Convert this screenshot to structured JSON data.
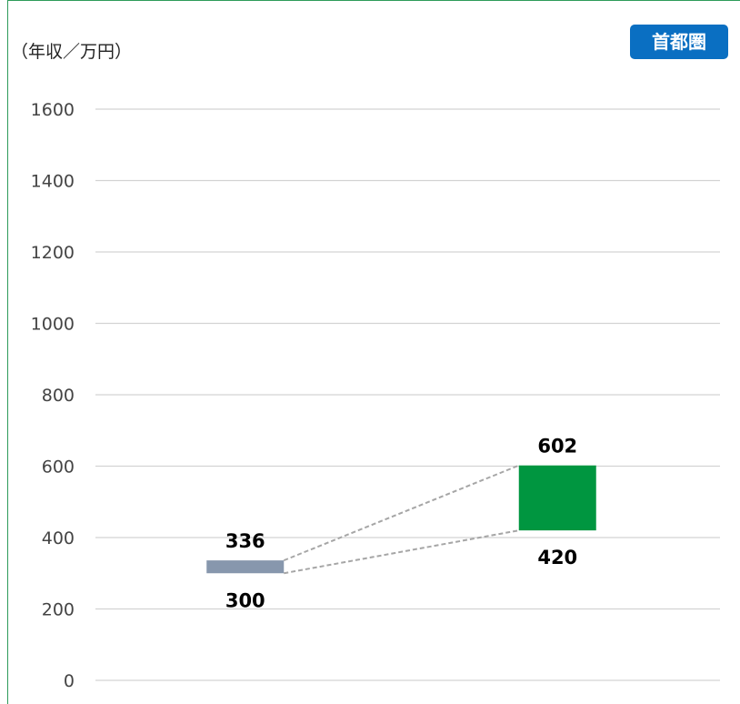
{
  "unit_label": "（年収／万円）",
  "region_badge": "首都圏",
  "colors": {
    "bar_before": "#8797ad",
    "bar_after": "#009640",
    "badge": "#0a6fc2"
  },
  "chart_data": {
    "type": "bar",
    "title": "",
    "ylabel": "（年収／万円）",
    "ylim": [
      0,
      1600
    ],
    "yticks": [
      0,
      200,
      400,
      600,
      800,
      1000,
      1200,
      1400,
      1600
    ],
    "grid": true,
    "bars": [
      {
        "low": 300,
        "high": 336,
        "color": "#8797ad"
      },
      {
        "low": 420,
        "high": 602,
        "color": "#009640"
      }
    ],
    "connectors": "dashed"
  }
}
